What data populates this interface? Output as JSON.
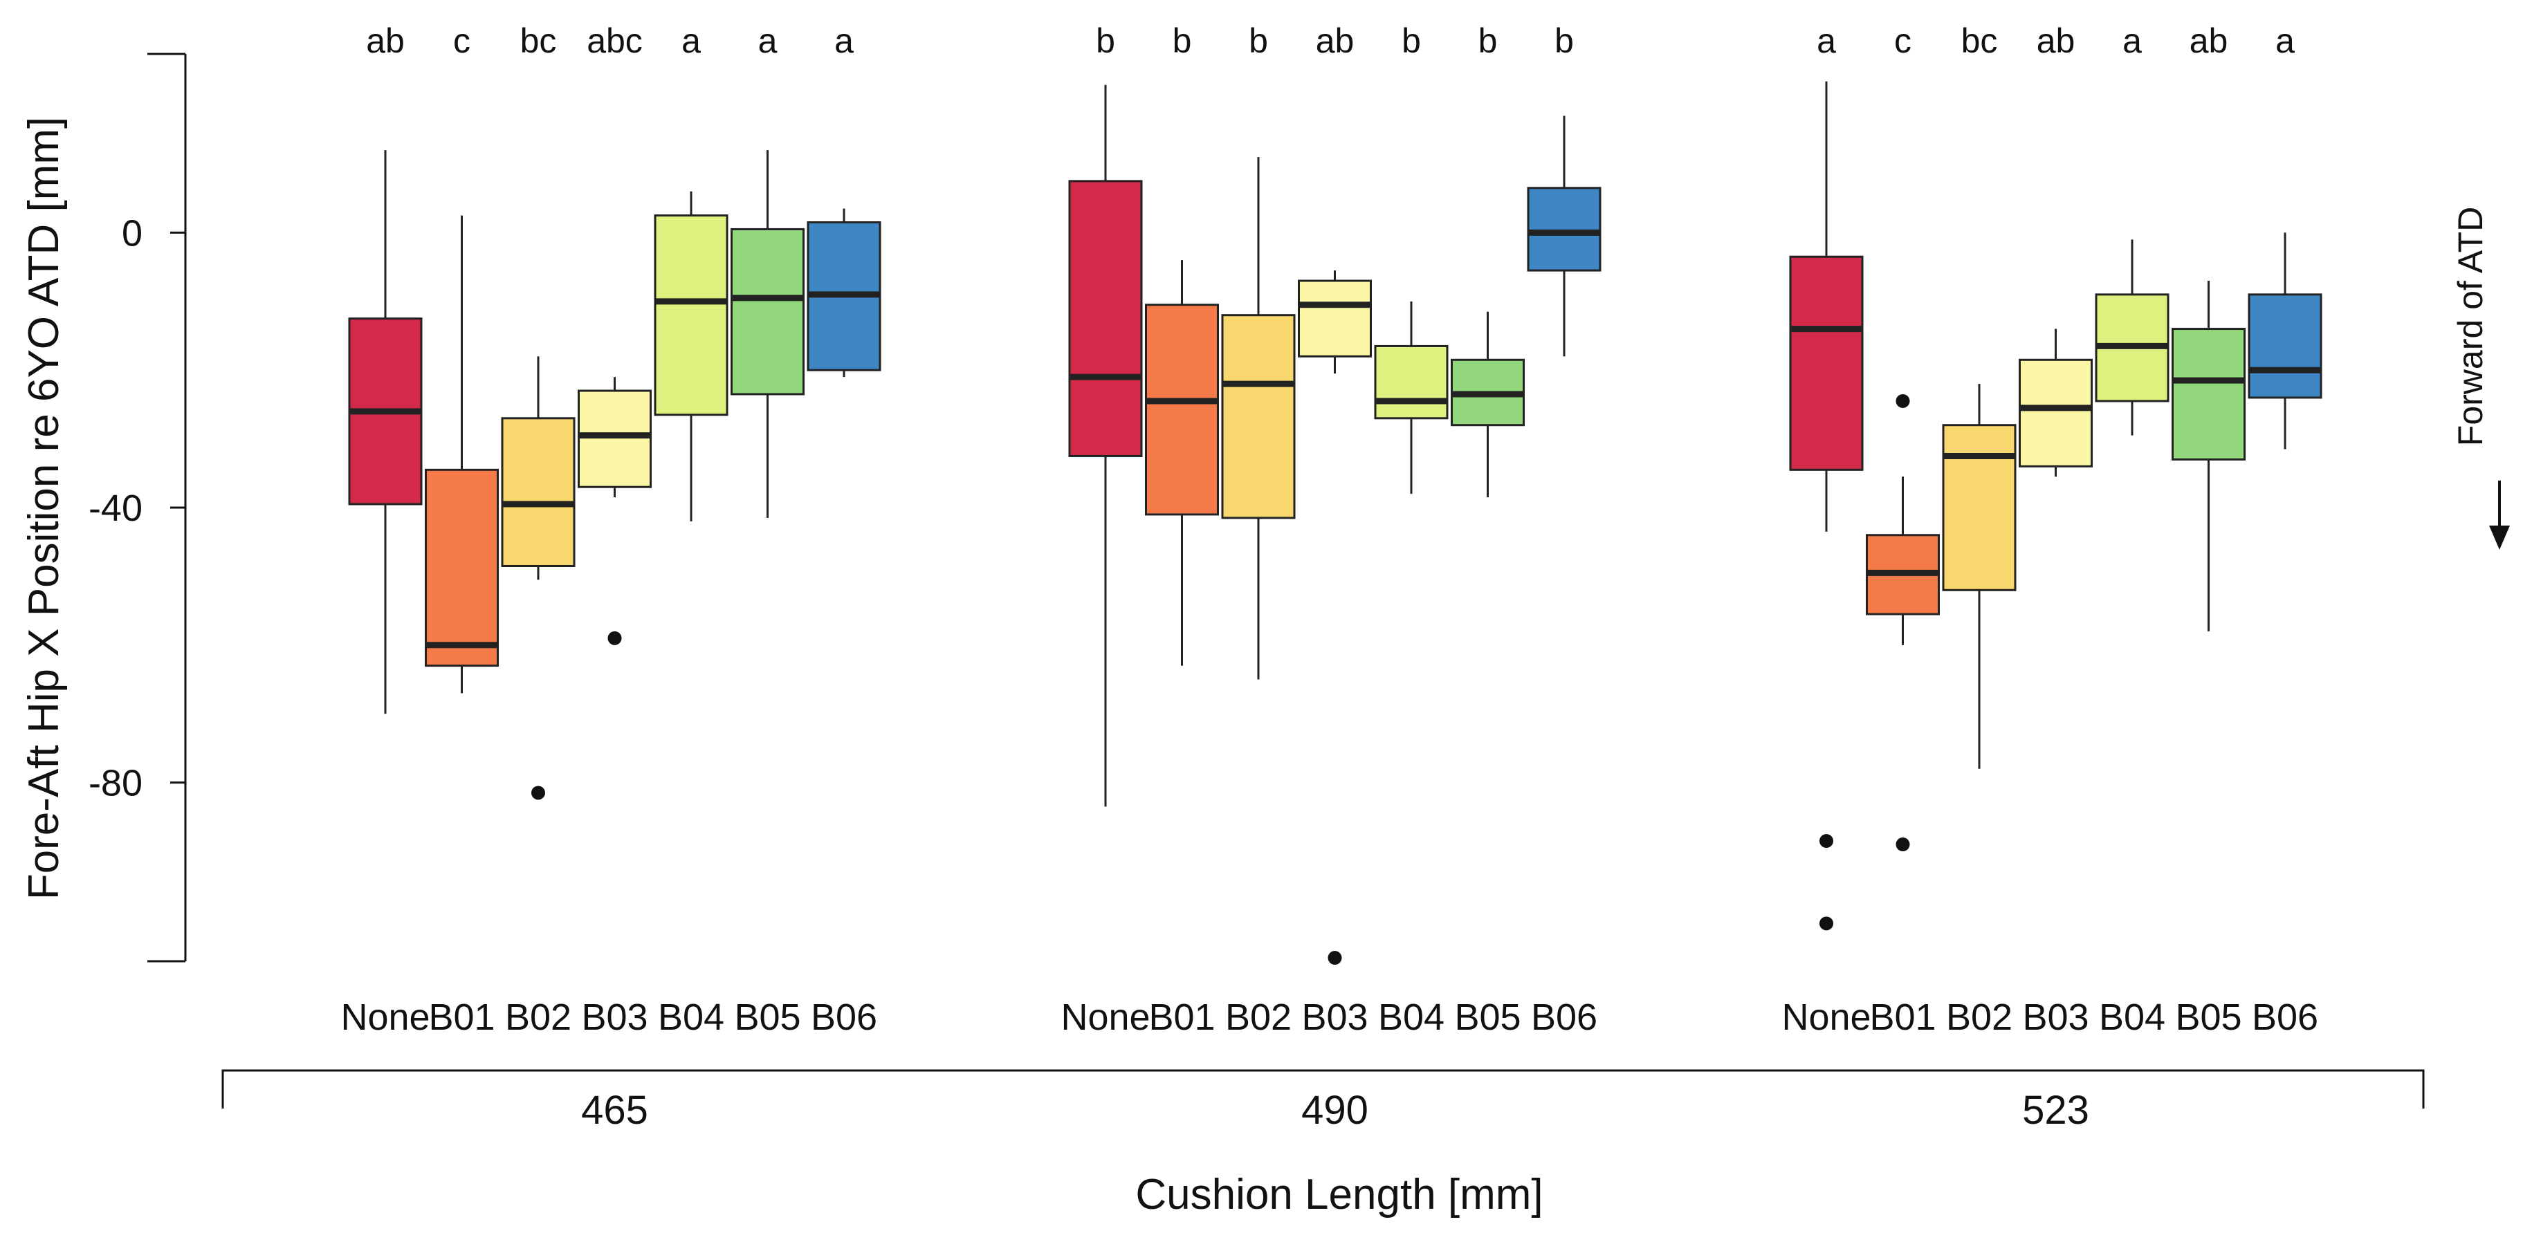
{
  "chart_data": {
    "type": "boxplot",
    "ylabel": "Fore-Aft Hip X Position re 6YO ATD [mm]",
    "xlabel": "Cushion Length [mm]",
    "ylim": [
      -106,
      26
    ],
    "yticks": [
      0,
      -40,
      -80
    ],
    "ytick_labels": [
      "0",
      "-40",
      "-80"
    ],
    "side_annotation": "Forward of ATD",
    "colors": {
      "None": "#d42a4a",
      "B01": "#f47a4a",
      "B02": "#f8d86e",
      "B03": "#fbf7a6",
      "B04": "#def07e",
      "B05": "#93d87c",
      "B06": "#3f86c4"
    },
    "groups": [
      {
        "label": "465",
        "boxes": [
          {
            "category": "None",
            "letter": "ab",
            "whisker_low": -70,
            "q1": -39.5,
            "median": -26,
            "q3": -12.5,
            "whisker_high": 12,
            "outliers": []
          },
          {
            "category": "B01",
            "letter": "c",
            "whisker_low": -67,
            "q1": -63,
            "median": -60,
            "q3": -34.5,
            "whisker_high": 2.5,
            "outliers": []
          },
          {
            "category": "B02",
            "letter": "bc",
            "whisker_low": -50.5,
            "q1": -48.5,
            "median": -39.5,
            "q3": -27,
            "whisker_high": -18,
            "outliers": [
              -81.5
            ]
          },
          {
            "category": "B03",
            "letter": "abc",
            "whisker_low": -38.5,
            "q1": -37,
            "median": -29.5,
            "q3": -23,
            "whisker_high": -21,
            "outliers": [
              -59
            ]
          },
          {
            "category": "B04",
            "letter": "a",
            "whisker_low": -42,
            "q1": -26.5,
            "median": -10,
            "q3": 2.5,
            "whisker_high": 6,
            "outliers": []
          },
          {
            "category": "B05",
            "letter": "a",
            "whisker_low": -41.5,
            "q1": -23.5,
            "median": -9.5,
            "q3": 0.5,
            "whisker_high": 12,
            "outliers": []
          },
          {
            "category": "B06",
            "letter": "a",
            "whisker_low": -21,
            "q1": -20,
            "median": -9,
            "q3": 1.5,
            "whisker_high": 3.5,
            "outliers": []
          }
        ]
      },
      {
        "label": "490",
        "boxes": [
          {
            "category": "None",
            "letter": "b",
            "whisker_low": -83.5,
            "q1": -32.5,
            "median": -21,
            "q3": 7.5,
            "whisker_high": 21.5,
            "outliers": []
          },
          {
            "category": "B01",
            "letter": "b",
            "whisker_low": -63,
            "q1": -41,
            "median": -24.5,
            "q3": -10.5,
            "whisker_high": -4,
            "outliers": []
          },
          {
            "category": "B02",
            "letter": "b",
            "whisker_low": -65,
            "q1": -41.5,
            "median": -22,
            "q3": -12,
            "whisker_high": 11,
            "outliers": []
          },
          {
            "category": "B03",
            "letter": "ab",
            "whisker_low": -20.5,
            "q1": -18,
            "median": -10.5,
            "q3": -7,
            "whisker_high": -5.5,
            "outliers": [
              -105.5
            ]
          },
          {
            "category": "B04",
            "letter": "b",
            "whisker_low": -38,
            "q1": -27,
            "median": -24.5,
            "q3": -16.5,
            "whisker_high": -10,
            "outliers": []
          },
          {
            "category": "B05",
            "letter": "b",
            "whisker_low": -38.5,
            "q1": -28,
            "median": -23.5,
            "q3": -18.5,
            "whisker_high": -11.5,
            "outliers": []
          },
          {
            "category": "B06",
            "letter": "b",
            "whisker_low": -18,
            "q1": -5.5,
            "median": 0,
            "q3": 6.5,
            "whisker_high": 17,
            "outliers": []
          }
        ]
      },
      {
        "label": "523",
        "boxes": [
          {
            "category": "None",
            "letter": "a",
            "whisker_low": -43.5,
            "q1": -34.5,
            "median": -14,
            "q3": -3.5,
            "whisker_high": 22,
            "outliers": [
              -88.5,
              -100.5
            ]
          },
          {
            "category": "B01",
            "letter": "c",
            "whisker_low": -60,
            "q1": -55.5,
            "median": -49.5,
            "q3": -44,
            "whisker_high": -35.5,
            "outliers": [
              -24.5,
              -89
            ]
          },
          {
            "category": "B02",
            "letter": "bc",
            "whisker_low": -78,
            "q1": -52,
            "median": -32.5,
            "q3": -28,
            "whisker_high": -22,
            "outliers": []
          },
          {
            "category": "B03",
            "letter": "ab",
            "whisker_low": -35.5,
            "q1": -34,
            "median": -25.5,
            "q3": -18.5,
            "whisker_high": -14,
            "outliers": []
          },
          {
            "category": "B04",
            "letter": "a",
            "whisker_low": -29.5,
            "q1": -24.5,
            "median": -16.5,
            "q3": -9,
            "whisker_high": -1,
            "outliers": []
          },
          {
            "category": "B05",
            "letter": "ab",
            "whisker_low": -58,
            "q1": -33,
            "median": -21.5,
            "q3": -14,
            "whisker_high": -7,
            "outliers": []
          },
          {
            "category": "B06",
            "letter": "a",
            "whisker_low": -31.5,
            "q1": -24,
            "median": -20,
            "q3": -9,
            "whisker_high": 0,
            "outliers": []
          }
        ]
      }
    ]
  }
}
